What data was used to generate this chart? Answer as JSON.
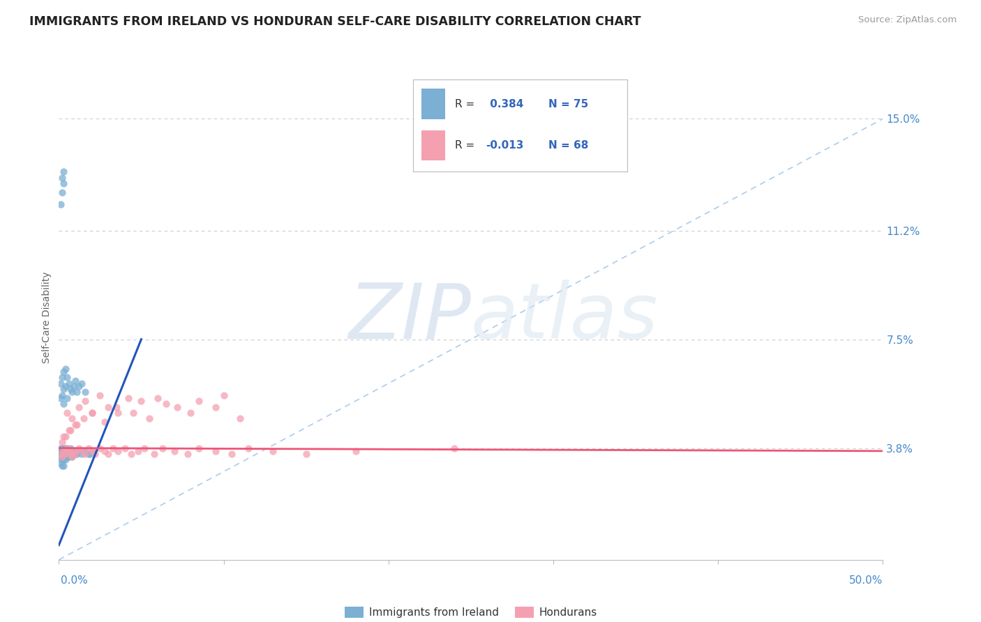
{
  "title": "IMMIGRANTS FROM IRELAND VS HONDURAN SELF-CARE DISABILITY CORRELATION CHART",
  "source_text": "Source: ZipAtlas.com",
  "ylabel": "Self-Care Disability",
  "ytick_labels": [
    "3.8%",
    "7.5%",
    "11.2%",
    "15.0%"
  ],
  "ytick_values": [
    0.038,
    0.075,
    0.112,
    0.15
  ],
  "xlim": [
    0.0,
    0.5
  ],
  "ylim": [
    0.0,
    0.165
  ],
  "ireland_R": 0.384,
  "ireland_N": 75,
  "honduran_R": -0.013,
  "honduran_N": 68,
  "ireland_color": "#7BAFD4",
  "honduran_color": "#F4A0B0",
  "ireland_trend_color": "#2255BB",
  "honduran_trend_color": "#EE5577",
  "ref_line_color": "#AACCEE",
  "grid_color": "#CCCCCC",
  "axis_label_color": "#4488CC",
  "title_color": "#222222",
  "legend_color": "#3366BB",
  "ireland_trend_x0": 0.0,
  "ireland_trend_y0": 0.005,
  "ireland_trend_x1": 0.05,
  "ireland_trend_y1": 0.075,
  "honduran_trend_x0": 0.0,
  "honduran_trend_y0": 0.038,
  "honduran_trend_x1": 0.5,
  "honduran_trend_y1": 0.037,
  "ireland_scatter_x": [
    0.001,
    0.001,
    0.001,
    0.001,
    0.001,
    0.002,
    0.002,
    0.002,
    0.002,
    0.002,
    0.002,
    0.002,
    0.003,
    0.003,
    0.003,
    0.003,
    0.003,
    0.003,
    0.004,
    0.004,
    0.004,
    0.004,
    0.004,
    0.005,
    0.005,
    0.005,
    0.005,
    0.006,
    0.006,
    0.006,
    0.007,
    0.007,
    0.007,
    0.008,
    0.008,
    0.008,
    0.009,
    0.009,
    0.01,
    0.01,
    0.011,
    0.011,
    0.012,
    0.013,
    0.014,
    0.015,
    0.016,
    0.018,
    0.019,
    0.02,
    0.001,
    0.001,
    0.002,
    0.002,
    0.003,
    0.003,
    0.003,
    0.004,
    0.004,
    0.005,
    0.005,
    0.006,
    0.007,
    0.008,
    0.009,
    0.01,
    0.011,
    0.012,
    0.014,
    0.016,
    0.001,
    0.002,
    0.002,
    0.003,
    0.003
  ],
  "ireland_scatter_y": [
    0.035,
    0.036,
    0.037,
    0.038,
    0.033,
    0.036,
    0.037,
    0.038,
    0.034,
    0.035,
    0.036,
    0.032,
    0.035,
    0.036,
    0.037,
    0.034,
    0.038,
    0.032,
    0.036,
    0.037,
    0.035,
    0.038,
    0.034,
    0.036,
    0.037,
    0.035,
    0.038,
    0.036,
    0.037,
    0.035,
    0.036,
    0.037,
    0.038,
    0.036,
    0.037,
    0.035,
    0.036,
    0.037,
    0.036,
    0.037,
    0.036,
    0.037,
    0.037,
    0.037,
    0.036,
    0.037,
    0.037,
    0.036,
    0.036,
    0.037,
    0.055,
    0.06,
    0.056,
    0.062,
    0.058,
    0.064,
    0.053,
    0.059,
    0.065,
    0.055,
    0.062,
    0.06,
    0.058,
    0.057,
    0.059,
    0.061,
    0.057,
    0.059,
    0.06,
    0.057,
    0.121,
    0.125,
    0.13,
    0.132,
    0.128
  ],
  "honduran_scatter_x": [
    0.001,
    0.002,
    0.003,
    0.004,
    0.005,
    0.006,
    0.007,
    0.008,
    0.009,
    0.01,
    0.012,
    0.014,
    0.016,
    0.018,
    0.02,
    0.022,
    0.025,
    0.028,
    0.03,
    0.033,
    0.036,
    0.04,
    0.044,
    0.048,
    0.052,
    0.058,
    0.063,
    0.07,
    0.078,
    0.085,
    0.095,
    0.105,
    0.115,
    0.13,
    0.15,
    0.18,
    0.005,
    0.008,
    0.012,
    0.016,
    0.02,
    0.025,
    0.03,
    0.036,
    0.042,
    0.05,
    0.06,
    0.072,
    0.085,
    0.1,
    0.003,
    0.006,
    0.01,
    0.015,
    0.02,
    0.028,
    0.035,
    0.045,
    0.055,
    0.065,
    0.08,
    0.095,
    0.11,
    0.24,
    0.002,
    0.004,
    0.007,
    0.011
  ],
  "honduran_scatter_y": [
    0.036,
    0.035,
    0.037,
    0.036,
    0.038,
    0.037,
    0.036,
    0.035,
    0.037,
    0.036,
    0.038,
    0.037,
    0.036,
    0.038,
    0.037,
    0.036,
    0.038,
    0.037,
    0.036,
    0.038,
    0.037,
    0.038,
    0.036,
    0.037,
    0.038,
    0.036,
    0.038,
    0.037,
    0.036,
    0.038,
    0.037,
    0.036,
    0.038,
    0.037,
    0.036,
    0.037,
    0.05,
    0.048,
    0.052,
    0.054,
    0.05,
    0.056,
    0.052,
    0.05,
    0.055,
    0.054,
    0.055,
    0.052,
    0.054,
    0.056,
    0.042,
    0.044,
    0.046,
    0.048,
    0.05,
    0.047,
    0.052,
    0.05,
    0.048,
    0.053,
    0.05,
    0.052,
    0.048,
    0.038,
    0.04,
    0.042,
    0.044,
    0.046
  ]
}
